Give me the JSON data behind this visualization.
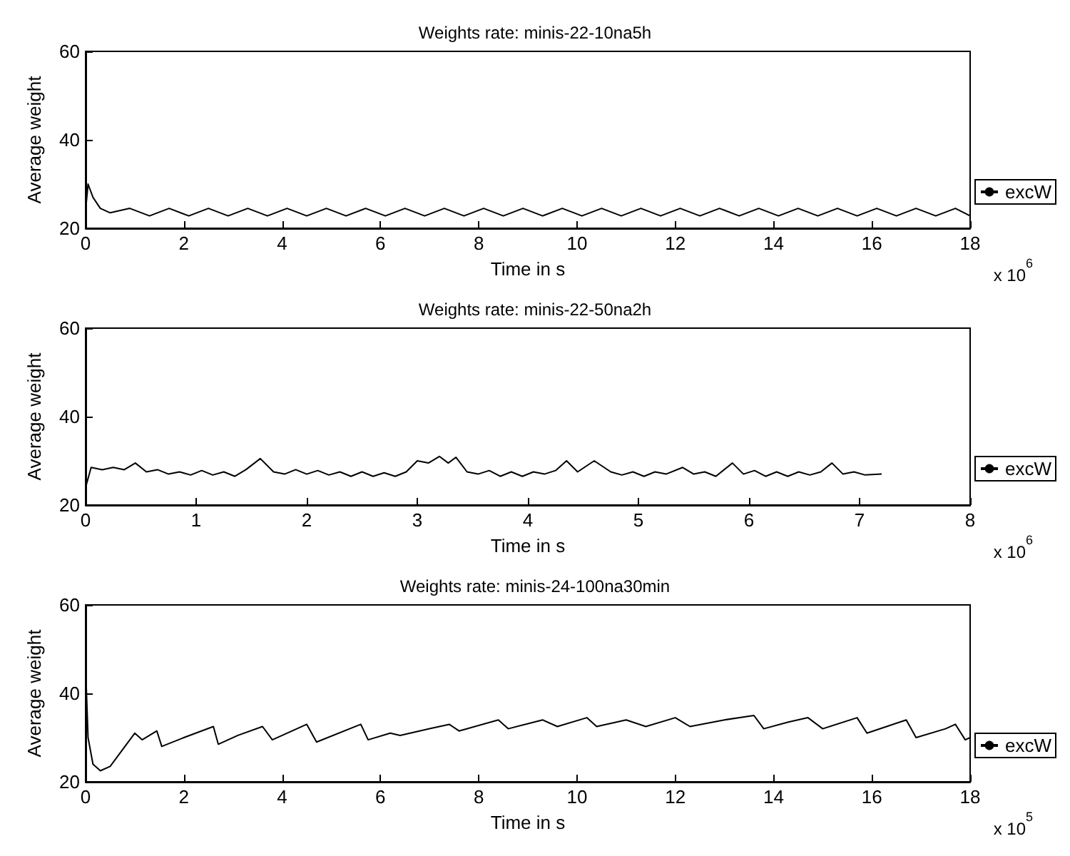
{
  "chart_data": [
    {
      "type": "line",
      "title": "Weights rate: minis-22-10na5h",
      "xlabel": "Time in s",
      "ylabel": "Average weight",
      "annotations": [
        "x 10$^{6}$"
      ],
      "legend": "right",
      "marker": "none",
      "line_style": "solid",
      "grid": false,
      "xlim": [
        0,
        18
      ],
      "xticks": [
        0,
        2,
        4,
        6,
        8,
        10,
        12,
        14,
        16,
        18
      ],
      "ylim": [
        20,
        60
      ],
      "yticks": [
        20,
        40,
        60
      ],
      "series": [
        {
          "name": "excW",
          "color": "#000000",
          "x": [
            0,
            0.05,
            0.15,
            0.3,
            0.5,
            0.9,
            1.3,
            1.7,
            2.1,
            2.5,
            2.9,
            3.3,
            3.7,
            4.1,
            4.5,
            4.9,
            5.3,
            5.7,
            6.1,
            6.5,
            6.9,
            7.3,
            7.7,
            8.1,
            8.5,
            8.9,
            9.3,
            9.7,
            10.1,
            10.5,
            10.9,
            11.3,
            11.7,
            12.1,
            12.5,
            12.9,
            13.3,
            13.7,
            14.1,
            14.5,
            14.9,
            15.3,
            15.7,
            16.1,
            16.5,
            16.9,
            17.3,
            17.7,
            18
          ],
          "values": [
            24,
            30,
            27,
            24.5,
            23.5,
            24.5,
            22.8,
            24.5,
            22.8,
            24.5,
            22.8,
            24.5,
            22.8,
            24.5,
            22.8,
            24.5,
            22.8,
            24.5,
            22.8,
            24.5,
            22.8,
            24.5,
            22.8,
            24.5,
            22.8,
            24.5,
            22.8,
            24.5,
            22.8,
            24.5,
            22.8,
            24.5,
            22.8,
            24.5,
            22.8,
            24.5,
            22.8,
            24.5,
            22.8,
            24.5,
            22.8,
            24.5,
            22.8,
            24.5,
            22.8,
            24.5,
            22.8,
            24.5,
            22.8
          ]
        }
      ]
    },
    {
      "type": "line",
      "title": "Weights rate: minis-22-50na2h",
      "xlabel": "Time in s",
      "ylabel": "Average weight",
      "annotations": [
        "x 10$^{6}$"
      ],
      "legend": "right",
      "marker": "none",
      "line_style": "solid",
      "grid": false,
      "xlim": [
        0,
        8
      ],
      "xticks": [
        0,
        1,
        2,
        3,
        4,
        5,
        6,
        7,
        8
      ],
      "ylim": [
        20,
        60
      ],
      "yticks": [
        20,
        40,
        60
      ],
      "series": [
        {
          "name": "excW",
          "color": "#000000",
          "x": [
            0,
            0.05,
            0.15,
            0.25,
            0.35,
            0.45,
            0.55,
            0.65,
            0.75,
            0.85,
            0.95,
            1.05,
            1.15,
            1.25,
            1.35,
            1.45,
            1.58,
            1.7,
            1.8,
            1.9,
            2.0,
            2.1,
            2.2,
            2.3,
            2.4,
            2.5,
            2.6,
            2.7,
            2.8,
            2.9,
            3.0,
            3.1,
            3.2,
            3.28,
            3.35,
            3.45,
            3.55,
            3.65,
            3.75,
            3.85,
            3.95,
            4.05,
            4.15,
            4.25,
            4.35,
            4.45,
            4.6,
            4.75,
            4.85,
            4.95,
            5.05,
            5.15,
            5.25,
            5.4,
            5.5,
            5.6,
            5.7,
            5.85,
            5.95,
            6.05,
            6.15,
            6.25,
            6.35,
            6.45,
            6.55,
            6.65,
            6.75,
            6.85,
            6.95,
            7.05,
            7.2
          ],
          "values": [
            24,
            28.5,
            28,
            28.5,
            28,
            29.5,
            27.5,
            28,
            27,
            27.5,
            26.8,
            27.8,
            26.8,
            27.5,
            26.5,
            28,
            30.5,
            27.5,
            27,
            28,
            27,
            27.8,
            26.8,
            27.5,
            26.5,
            27.5,
            26.5,
            27.3,
            26.5,
            27.5,
            30,
            29.5,
            31,
            29.5,
            30.8,
            27.5,
            27,
            27.8,
            26.5,
            27.5,
            26.5,
            27.5,
            27,
            27.8,
            30,
            27.5,
            30,
            27.5,
            26.8,
            27.5,
            26.5,
            27.5,
            27,
            28.5,
            27,
            27.5,
            26.5,
            29.5,
            27,
            27.8,
            26.5,
            27.5,
            26.5,
            27.5,
            26.8,
            27.5,
            29.5,
            27,
            27.5,
            26.8,
            27
          ]
        }
      ]
    },
    {
      "type": "line",
      "title": "Weights rate: minis-24-100na30min",
      "xlabel": "Time in s",
      "ylabel": "Average weight",
      "annotations": [
        "x 10$^{5}$"
      ],
      "legend": "right",
      "marker": "none",
      "line_style": "solid",
      "grid": false,
      "xlim": [
        0,
        18
      ],
      "xticks": [
        0,
        2,
        4,
        6,
        8,
        10,
        12,
        14,
        16,
        18
      ],
      "ylim": [
        20,
        60
      ],
      "yticks": [
        20,
        40,
        60
      ],
      "series": [
        {
          "name": "excW",
          "color": "#000000",
          "x": [
            0,
            0.05,
            0.15,
            0.3,
            0.5,
            1.0,
            1.15,
            1.45,
            1.55,
            2.0,
            2.6,
            2.7,
            3.1,
            3.6,
            3.8,
            4.5,
            4.7,
            5.6,
            5.75,
            6.2,
            6.4,
            7.0,
            7.4,
            7.6,
            8.4,
            8.6,
            9.3,
            9.6,
            10.2,
            10.4,
            11.0,
            11.4,
            12.0,
            12.3,
            13.0,
            13.6,
            13.8,
            14.3,
            14.7,
            15.0,
            15.7,
            15.9,
            16.3,
            16.7,
            16.9,
            17.5,
            17.7,
            17.9,
            18
          ],
          "values": [
            46,
            30,
            24,
            22.5,
            23.5,
            31,
            29.5,
            31.5,
            28,
            30,
            32.5,
            28.5,
            30.5,
            32.5,
            29.5,
            33,
            29,
            33,
            29.5,
            31,
            30.5,
            32,
            33,
            31.5,
            34,
            32,
            34,
            32.5,
            34.5,
            32.5,
            34,
            32.5,
            34.5,
            32.5,
            34,
            35,
            32,
            33.5,
            34.5,
            32,
            34.5,
            31,
            32.5,
            34,
            30,
            32,
            33,
            29.5,
            30
          ]
        }
      ]
    }
  ]
}
